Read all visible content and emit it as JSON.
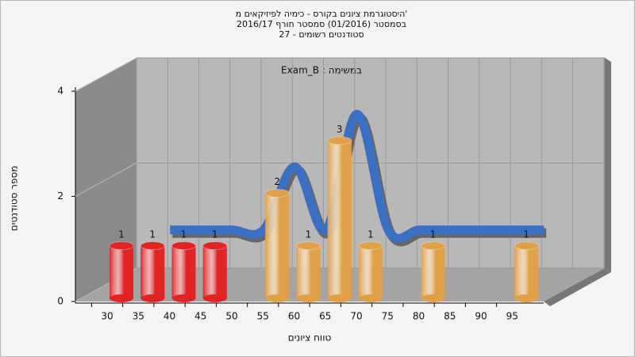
{
  "chart_data": {
    "type": "bar",
    "title": "היסטוגרמת ציונים בקורס - כימיה לפיזיקאים מ'",
    "subtitle": "בסמסטר  (01/2016)  סמסטר חורף 2016/17",
    "subtitle2": "סטודנטים רשומים - 27",
    "annotation": "Exam_B : במשימה",
    "x_label": "טווח ציונים",
    "y_label": "מספר סטודנטים",
    "categories": [
      "30",
      "35",
      "40",
      "45",
      "50",
      "55",
      "60",
      "65",
      "70",
      "75",
      "80",
      "85",
      "90",
      "95"
    ],
    "values": [
      1,
      1,
      1,
      1,
      0,
      2,
      1,
      3,
      1,
      0,
      1,
      0,
      0,
      1
    ],
    "colors": [
      "#e02424",
      "#e02424",
      "#e02424",
      "#e02424",
      "#e02424",
      "#e0a048",
      "#e0a048",
      "#e0a048",
      "#e0a048",
      "#e0a048",
      "#e0a048",
      "#e0a048",
      "#e0a048",
      "#e0a048"
    ],
    "line_values": [
      null,
      1,
      1,
      1,
      1,
      2.2,
      1,
      3.2,
      1,
      1,
      1,
      1,
      1,
      1
    ],
    "line_color": "#3a6fc4",
    "ylim": [
      0,
      4
    ],
    "yticks": [
      0,
      2,
      4
    ],
    "grid": true
  }
}
